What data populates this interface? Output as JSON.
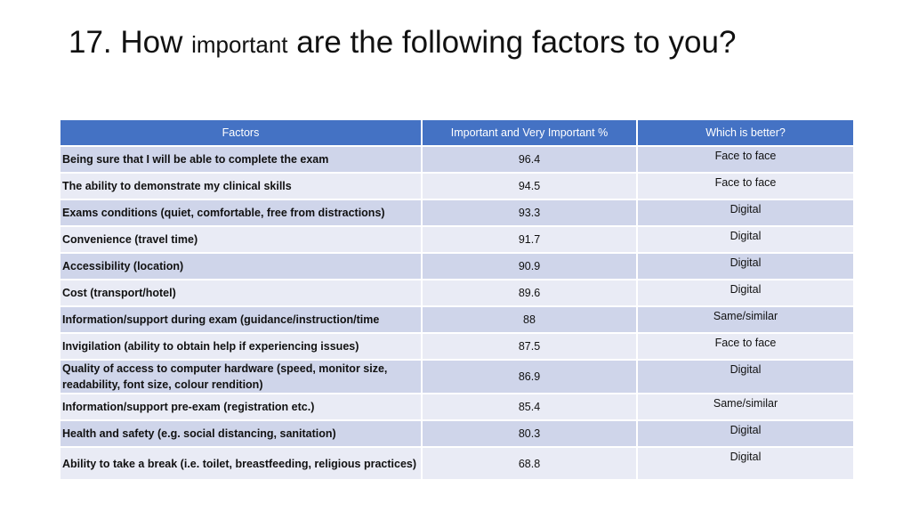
{
  "slide": {
    "title_part1": "17. How ",
    "title_part2": "important",
    "title_part3": " are the following factors to you?"
  },
  "table": {
    "headers": [
      "Factors",
      "Important and Very Important %",
      "Which is better?"
    ],
    "rows": [
      {
        "factor": "Being sure that I will be able to complete the exam",
        "pct": "96.4",
        "better": "Face to face"
      },
      {
        "factor": "The ability to demonstrate my clinical skills",
        "pct": "94.5",
        "better": "Face to face"
      },
      {
        "factor": "Exams conditions (quiet, comfortable, free from distractions)",
        "pct": "93.3",
        "better": "Digital"
      },
      {
        "factor": "Convenience (travel time)",
        "pct": "91.7",
        "better": "Digital"
      },
      {
        "factor": "Accessibility (location)",
        "pct": "90.9",
        "better": "Digital"
      },
      {
        "factor": "Cost (transport/hotel)",
        "pct": "89.6",
        "better": "Digital"
      },
      {
        "factor": "Information/support during exam (guidance/instruction/time",
        "pct": "88",
        "better": "Same/similar"
      },
      {
        "factor": "Invigilation (ability to obtain help if experiencing issues)",
        "pct": "87.5",
        "better": "Face to face"
      },
      {
        "factor": "Quality of access to computer hardware (speed, monitor size, readability, font size, colour rendition)",
        "pct": "86.9",
        "better": "Digital"
      },
      {
        "factor": "Information/support pre-exam (registration etc.)",
        "pct": "85.4",
        "better": "Same/similar"
      },
      {
        "factor": "Health and safety (e.g. social distancing, sanitation)",
        "pct": "80.3",
        "better": "Digital"
      },
      {
        "factor": "Ability to take a break (i.e. toilet, breastfeeding, religious practices)",
        "pct": "68.8",
        "better": "Digital"
      }
    ]
  },
  "colors": {
    "header_bg": "#4472c4",
    "row_odd_bg": "#cfd5ea",
    "row_even_bg": "#e9ebf5"
  }
}
